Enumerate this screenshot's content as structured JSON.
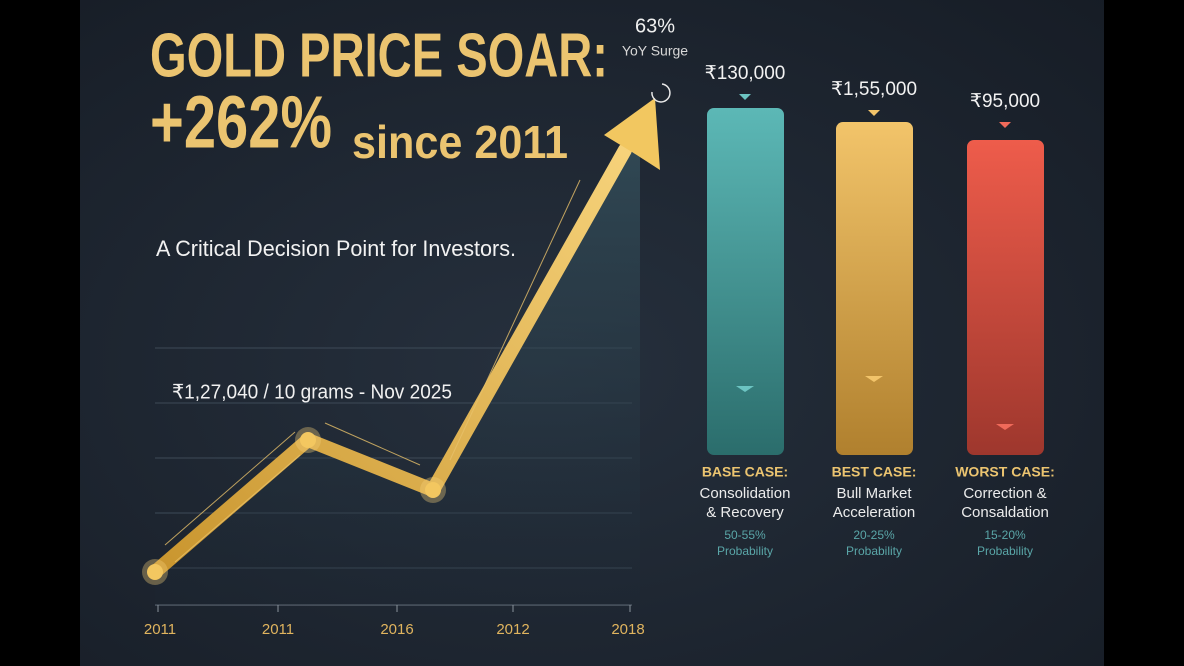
{
  "header": {
    "title_line1": "GOLD PRICE SOAR:",
    "title_big": "+262%",
    "title_rest": "since 2011",
    "subtitle": "A Critical Decision Point for Investors."
  },
  "callout": {
    "value": "63%",
    "label": "YoY Surge"
  },
  "annotation": "₹1,27,040 / 10 grams - Nov 2025",
  "x_labels": [
    "2011",
    "2011",
    "2016",
    "2012",
    "2018"
  ],
  "scenarios": [
    {
      "price": "₹130,000",
      "case": "BASE CASE:",
      "description": [
        "Consolidation",
        "& Recovery"
      ],
      "probability": [
        "50-55%",
        "Probability"
      ]
    },
    {
      "price": "₹1,55,000",
      "case": "BEST CASE:",
      "description": [
        "Bull Market",
        "Acceleration"
      ],
      "probability": [
        "20-25%",
        "Probability"
      ]
    },
    {
      "price": "₹95,000",
      "case": "WORST CASE:",
      "description": [
        "Correction &",
        "Consaldation"
      ],
      "probability": [
        "15-20%",
        "Probability"
      ]
    }
  ]
}
